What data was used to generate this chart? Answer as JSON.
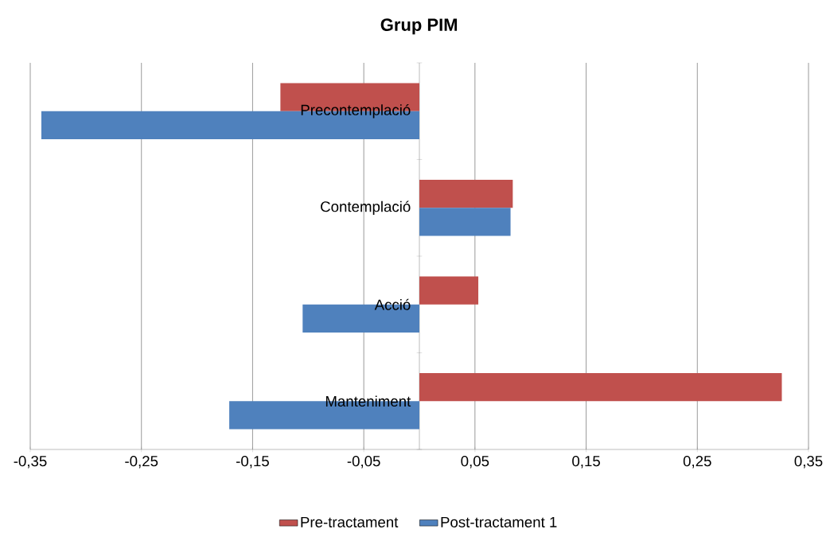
{
  "chart_data": {
    "type": "bar",
    "orientation": "horizontal",
    "title": "Grup PIM",
    "categories": [
      "Precontemplació",
      "Contemplació",
      "Acció",
      "Manteniment"
    ],
    "series": [
      {
        "name": "Pre-tractament",
        "color": "#c0504d",
        "values": [
          -0.125,
          0.084,
          0.053,
          0.326
        ]
      },
      {
        "name": "Post-tractament 1",
        "color": "#4f81bd",
        "values": [
          -0.34,
          0.082,
          -0.105,
          -0.171
        ]
      }
    ],
    "xlim": [
      -0.35,
      0.35
    ],
    "xticks": [
      {
        "value": -0.35,
        "label": "-0,35"
      },
      {
        "value": -0.25,
        "label": "-0,25"
      },
      {
        "value": -0.15,
        "label": "-0,15"
      },
      {
        "value": -0.05,
        "label": "-0,05"
      },
      {
        "value": 0.05,
        "label": "0,05"
      },
      {
        "value": 0.15,
        "label": "0,15"
      },
      {
        "value": 0.25,
        "label": "0,25"
      },
      {
        "value": 0.35,
        "label": "0,35"
      }
    ],
    "grid": "x",
    "legend": "bottom"
  }
}
